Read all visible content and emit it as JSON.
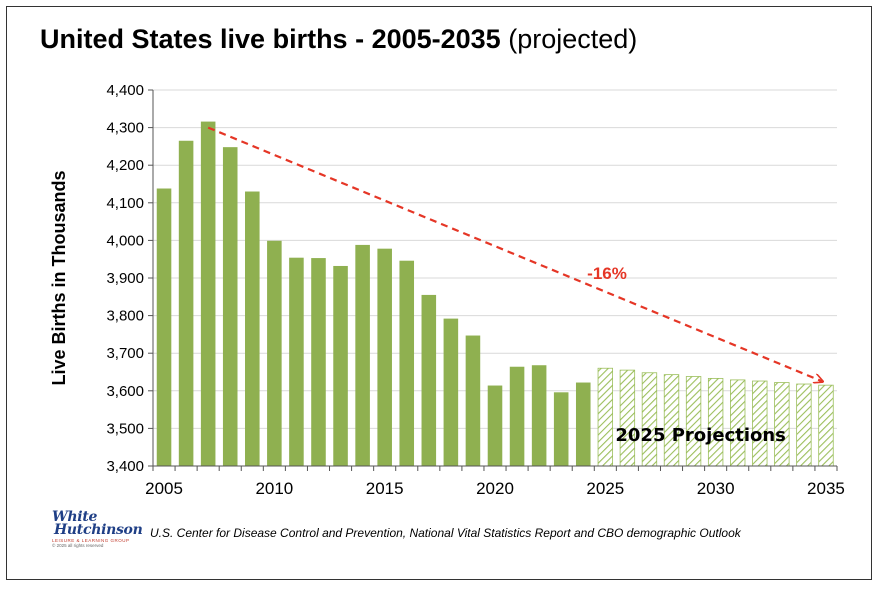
{
  "header": {
    "title_bold": "United States live births - 2005-2035",
    "title_sub": "(projected)"
  },
  "chart_data": {
    "type": "bar",
    "ylabel": "Live Births in Thousands",
    "ylim": [
      3400,
      4400
    ],
    "yticks": [
      "3,400",
      "3,500",
      "3,600",
      "3,700",
      "3,800",
      "3,900",
      "4,000",
      "4,100",
      "4,200",
      "4,300",
      "4,400"
    ],
    "xlim": [
      2005,
      2035
    ],
    "xticks": [
      "2005",
      "2010",
      "2015",
      "2020",
      "2025",
      "2030",
      "2035"
    ],
    "grid": true,
    "series": [
      {
        "name": "",
        "x": [
          2005,
          2006,
          2007,
          2008,
          2009,
          2010,
          2011,
          2012,
          2013,
          2014,
          2015,
          2016,
          2017,
          2018,
          2019,
          2020,
          2021,
          2022,
          2023,
          2024
        ],
        "values": [
          4138,
          4265,
          4316,
          4248,
          4130,
          3999,
          3954,
          3953,
          3932,
          3988,
          3978,
          3946,
          3855,
          3792,
          3747,
          3614,
          3664,
          3668,
          3596,
          3622
        ]
      },
      {
        "name": "2025 Projections",
        "x": [
          2025,
          2026,
          2027,
          2028,
          2029,
          2030,
          2031,
          2032,
          2033,
          2034,
          2035
        ],
        "values": [
          3660,
          3655,
          3648,
          3643,
          3638,
          3633,
          3629,
          3626,
          3622,
          3618,
          3615
        ]
      }
    ],
    "annotations": [
      {
        "text": "-16%",
        "from_x": 2007,
        "from_y": 4300,
        "to_x": 2035,
        "to_y": 3620
      }
    ],
    "colors": {
      "bar": "#8fb050",
      "hatch": "#9cbf5c",
      "arrow": "#e53626",
      "grid": "#d9d9d9"
    }
  },
  "footer": {
    "logo_line1": "White",
    "logo_line2": "Hutchinson",
    "logo_line3": "LEISURE & LEARNING GROUP",
    "logo_line4": "© 2025 all rights reserved",
    "source": "U.S.  Center for Disease Control and Prevention, National Vital Statistics Report and CBO demographic Outlook"
  }
}
